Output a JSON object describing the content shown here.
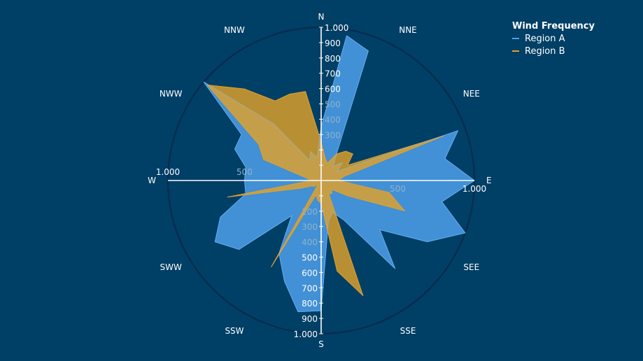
{
  "chart_data": {
    "type": "radar",
    "title": "",
    "legend": {
      "title": "Wind Frequency",
      "position": "top-right"
    },
    "angular_direction": "clockwise",
    "rotation_start": "N",
    "direction_labels": [
      "N",
      "NNE",
      "NEE",
      "E",
      "SEE",
      "SSE",
      "S",
      "SSW",
      "SWW",
      "W",
      "NWW",
      "NNW"
    ],
    "radial_range": [
      0,
      1000
    ],
    "radial_ticks_north": [
      "1.000",
      "900",
      "800",
      "700",
      "600",
      "500",
      "400",
      "300"
    ],
    "radial_ticks_south": [
      "200",
      "300",
      "400",
      "500",
      "600",
      "700",
      "800",
      "900",
      "1.000"
    ],
    "radial_ticks_east": [
      "500",
      "1.000"
    ],
    "radial_ticks_west": [
      "1.000",
      "500"
    ],
    "series": [
      {
        "name": "Region A",
        "color": "#4d9fe9",
        "points": [
          {
            "angle": 0,
            "r": 350
          },
          {
            "angle": 10,
            "r": 960
          },
          {
            "angle": 20,
            "r": 900
          },
          {
            "angle": 30,
            "r": 200
          },
          {
            "angle": 40,
            "r": 120
          },
          {
            "angle": 50,
            "r": 180
          },
          {
            "angle": 60,
            "r": 120
          },
          {
            "angle": 70,
            "r": 950
          },
          {
            "angle": 80,
            "r": 820
          },
          {
            "angle": 90,
            "r": 1000
          },
          {
            "angle": 100,
            "r": 800
          },
          {
            "angle": 110,
            "r": 1000
          },
          {
            "angle": 120,
            "r": 800
          },
          {
            "angle": 130,
            "r": 500
          },
          {
            "angle": 140,
            "r": 750
          },
          {
            "angle": 150,
            "r": 300
          },
          {
            "angle": 160,
            "r": 220
          },
          {
            "angle": 170,
            "r": 270
          },
          {
            "angle": 180,
            "r": 850
          },
          {
            "angle": 190,
            "r": 870
          },
          {
            "angle": 200,
            "r": 700
          },
          {
            "angle": 210,
            "r": 550
          },
          {
            "angle": 220,
            "r": 300
          },
          {
            "angle": 230,
            "r": 700
          },
          {
            "angle": 240,
            "r": 800
          },
          {
            "angle": 250,
            "r": 700
          },
          {
            "angle": 260,
            "r": 500
          },
          {
            "angle": 270,
            "r": 500
          },
          {
            "angle": 280,
            "r": 500
          },
          {
            "angle": 290,
            "r": 600
          },
          {
            "angle": 300,
            "r": 600
          },
          {
            "angle": 310,
            "r": 1000
          },
          {
            "angle": 320,
            "r": 480
          },
          {
            "angle": 330,
            "r": 150
          },
          {
            "angle": 340,
            "r": 200
          },
          {
            "angle": 350,
            "r": 150
          }
        ]
      },
      {
        "name": "Region B",
        "color": "#e2a12a",
        "points": [
          {
            "angle": 0,
            "r": 250
          },
          {
            "angle": 10,
            "r": 150
          },
          {
            "angle": 20,
            "r": 120
          },
          {
            "angle": 30,
            "r": 200
          },
          {
            "angle": 40,
            "r": 250
          },
          {
            "angle": 50,
            "r": 270
          },
          {
            "angle": 60,
            "r": 200
          },
          {
            "angle": 70,
            "r": 850
          },
          {
            "angle": 80,
            "r": 150
          },
          {
            "angle": 90,
            "r": 110
          },
          {
            "angle": 100,
            "r": 450
          },
          {
            "angle": 110,
            "r": 580
          },
          {
            "angle": 120,
            "r": 200
          },
          {
            "angle": 130,
            "r": 90
          },
          {
            "angle": 140,
            "r": 110
          },
          {
            "angle": 150,
            "r": 100
          },
          {
            "angle": 160,
            "r": 800
          },
          {
            "angle": 170,
            "r": 600
          },
          {
            "angle": 180,
            "r": 150
          },
          {
            "angle": 190,
            "r": 130
          },
          {
            "angle": 200,
            "r": 100
          },
          {
            "angle": 210,
            "r": 650
          },
          {
            "angle": 220,
            "r": 30
          },
          {
            "angle": 230,
            "r": 60
          },
          {
            "angle": 240,
            "r": 70
          },
          {
            "angle": 250,
            "r": 150
          },
          {
            "angle": 260,
            "r": 620
          },
          {
            "angle": 270,
            "r": 60
          },
          {
            "angle": 280,
            "r": 100
          },
          {
            "angle": 290,
            "r": 400
          },
          {
            "angle": 300,
            "r": 470
          },
          {
            "angle": 310,
            "r": 970
          },
          {
            "angle": 320,
            "r": 780
          },
          {
            "angle": 330,
            "r": 600
          },
          {
            "angle": 340,
            "r": 600
          },
          {
            "angle": 350,
            "r": 590
          }
        ]
      }
    ]
  }
}
